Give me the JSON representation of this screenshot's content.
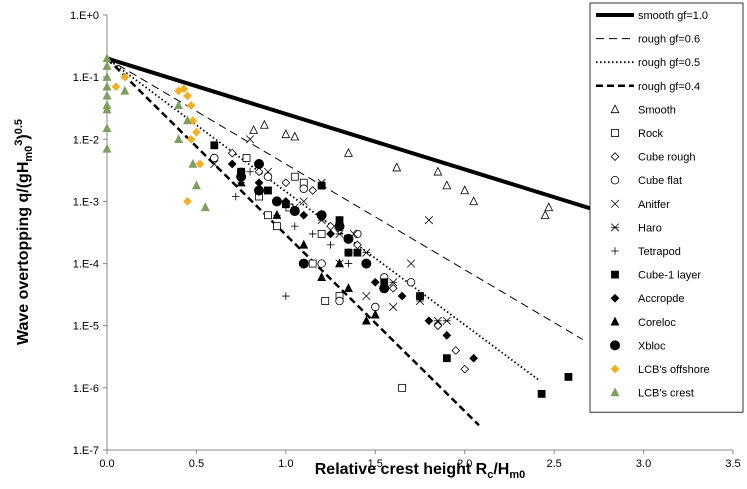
{
  "chart_data": {
    "type": "scatter",
    "yscale": "log",
    "grid": false,
    "legend": "upper right",
    "xlabel": [
      "Relative crest height R",
      "c",
      "/H",
      "m0"
    ],
    "ylabel": [
      "Wave overtopping q/(gH",
      "m0",
      "3",
      ")",
      "0.5"
    ],
    "xlim": [
      0,
      3.5
    ],
    "ylim": [
      1e-07,
      1
    ],
    "xticks": [
      {
        "value": 0,
        "label": "0.0"
      },
      0.5,
      {
        "value": 1,
        "label": "1.0"
      },
      1.5,
      {
        "value": 2,
        "label": "2.0"
      },
      2.5,
      {
        "value": 3,
        "label": "3.0"
      },
      3.5
    ],
    "yticks": [
      {
        "value": 1e-07,
        "label": "1.E-7"
      },
      {
        "value": 1e-06,
        "label": "1.E-6"
      },
      {
        "value": 1e-05,
        "label": "1.E-5"
      },
      {
        "value": 0.0001,
        "label": "1.E-4"
      },
      {
        "value": 0.001,
        "label": "1.E-3"
      },
      {
        "value": 0.01,
        "label": "1.E-2"
      },
      {
        "value": 0.1,
        "label": "1.E-1"
      },
      {
        "value": 1,
        "label": "1.E+0"
      }
    ],
    "lines": [
      {
        "name": "smooth gf=1.0",
        "color": "#000000",
        "dash": "solid",
        "x": [
          0,
          3.5
        ],
        "values": [
          0.2,
          0.00015
        ]
      },
      {
        "name": "rough gf=0.6",
        "color": "#000000",
        "dash": "dashed",
        "x": [
          0,
          2.66
        ],
        "values": [
          0.2,
          6e-06
        ]
      },
      {
        "name": "rough gf=0.5",
        "color": "#000000",
        "dash": "dotted",
        "x": [
          0,
          2.42
        ],
        "values": [
          0.2,
          1.3e-06
        ]
      },
      {
        "name": "rough gf=0.4",
        "color": "#000000",
        "dash": "bold-dashed",
        "x": [
          0,
          2.08
        ],
        "values": [
          0.2,
          2.5e-07
        ]
      }
    ],
    "series": [
      {
        "name": "Smooth",
        "marker": "triangle",
        "filled": false,
        "color": "#000000",
        "x": [
          0.82,
          0.88,
          1.0,
          1.05,
          1.35,
          1.62,
          1.85,
          1.9,
          2.0,
          2.05,
          2.45,
          2.47
        ],
        "values": [
          0.014,
          0.017,
          0.012,
          0.011,
          0.006,
          0.0035,
          0.003,
          0.0018,
          0.0015,
          0.001,
          0.0006,
          0.0008
        ]
      },
      {
        "name": "Rock",
        "marker": "square",
        "filled": false,
        "color": "#000000",
        "x": [
          0.78,
          0.85,
          0.95,
          1.02,
          1.1,
          1.15,
          1.2,
          1.22,
          1.3,
          1.65,
          1.05,
          0.9
        ],
        "values": [
          0.005,
          0.0012,
          0.0004,
          0.0008,
          0.002,
          0.0001,
          0.0003,
          2.5e-05,
          3e-05,
          1e-06,
          0.0025,
          0.0006
        ]
      },
      {
        "name": "Cube rough",
        "marker": "diamond",
        "filled": false,
        "color": "#000000",
        "x": [
          0.7,
          0.85,
          1.0,
          1.15,
          1.25,
          1.4,
          1.6,
          1.75,
          1.85,
          1.95,
          2.0
        ],
        "values": [
          0.006,
          0.003,
          0.002,
          0.0015,
          0.0004,
          0.0002,
          4e-05,
          3e-05,
          1e-05,
          4e-06,
          2e-06
        ]
      },
      {
        "name": "Cube flat",
        "marker": "circle",
        "filled": false,
        "color": "#000000",
        "x": [
          0.6,
          0.75,
          0.9,
          1.1,
          1.2,
          1.4,
          1.55,
          1.7,
          1.5,
          1.3
        ],
        "values": [
          0.005,
          0.003,
          0.0025,
          0.0016,
          0.0001,
          0.0003,
          6e-05,
          5e-05,
          2e-05,
          2.5e-05
        ]
      },
      {
        "name": "Anitfer",
        "marker": "x",
        "filled": false,
        "color": "#000000",
        "x": [
          0.6,
          0.8,
          0.9,
          1.1,
          1.2,
          1.3,
          1.45,
          1.55,
          1.7,
          1.8,
          1.6,
          1.38
        ],
        "values": [
          0.004,
          0.01,
          0.003,
          0.001,
          0.002,
          0.0001,
          3e-05,
          5e-05,
          0.0001,
          0.0005,
          2e-05,
          0.0003
        ]
      },
      {
        "name": "Haro",
        "marker": "star",
        "filled": false,
        "color": "#000000",
        "x": [
          0.75,
          0.9,
          1.05,
          1.2,
          1.3,
          1.45,
          1.6,
          1.75,
          1.85,
          1.9
        ],
        "values": [
          0.002,
          0.0015,
          0.0008,
          0.0005,
          0.0003,
          0.00015,
          5e-05,
          2.5e-05,
          1.2e-05,
          1.2e-05
        ]
      },
      {
        "name": "Tetrapod",
        "marker": "plus",
        "filled": false,
        "color": "#000000",
        "x": [
          0.72,
          0.8,
          0.95,
          1.05,
          1.1,
          1.15,
          1.25,
          1.35,
          1.0,
          0.85
        ],
        "values": [
          0.0012,
          0.003,
          0.0006,
          0.0004,
          0.0001,
          0.0003,
          0.0002,
          0.0001,
          3e-05,
          0.0015
        ]
      },
      {
        "name": "Cube-1 layer",
        "marker": "square",
        "filled": true,
        "color": "#000000",
        "x": [
          0.6,
          0.75,
          0.9,
          1.0,
          1.2,
          1.3,
          1.4,
          1.55,
          1.75,
          1.9,
          2.43,
          2.58,
          1.35
        ],
        "values": [
          0.008,
          0.003,
          0.0015,
          0.0009,
          0.0018,
          0.0005,
          0.00015,
          5e-05,
          3e-05,
          3e-06,
          8e-07,
          1.5e-06,
          0.00015
        ]
      },
      {
        "name": "Accropde",
        "marker": "diamond",
        "filled": true,
        "color": "#000000",
        "x": [
          0.7,
          0.85,
          1.0,
          1.1,
          1.25,
          1.35,
          1.5,
          1.65,
          1.8,
          1.9,
          2.05
        ],
        "values": [
          0.004,
          0.002,
          0.001,
          0.0006,
          0.0003,
          0.00015,
          5e-05,
          3e-05,
          1.2e-05,
          7e-06,
          3e-06
        ]
      },
      {
        "name": "Coreloc",
        "marker": "triangle",
        "filled": true,
        "color": "#000000",
        "x": [
          0.75,
          0.95,
          1.1,
          1.2,
          1.3,
          1.35,
          1.45,
          1.5
        ],
        "values": [
          0.002,
          0.0006,
          0.0002,
          6e-05,
          0.0001,
          4e-05,
          1.2e-05,
          1.5e-05
        ]
      },
      {
        "name": "Xbloc",
        "marker": "circle",
        "filled": true,
        "color": "#000000",
        "x": [
          0.75,
          0.85,
          0.95,
          1.05,
          1.2,
          1.3,
          1.35,
          1.45,
          1.55,
          0.85,
          1.1
        ],
        "values": [
          0.0025,
          0.0015,
          0.001,
          0.0007,
          0.0006,
          0.0004,
          0.00025,
          0.0001,
          4e-05,
          0.004,
          0.0001
        ]
      },
      {
        "name": "LCB's offshore",
        "marker": "diamond",
        "filled": true,
        "color": "#f4b024",
        "x": [
          0.05,
          0.1,
          0.4,
          0.43,
          0.45,
          0.47,
          0.48,
          0.5,
          0.52,
          0.45,
          0.47
        ],
        "values": [
          0.07,
          0.1,
          0.06,
          0.065,
          0.05,
          0.035,
          0.02,
          0.013,
          0.004,
          0.001,
          0.01
        ]
      },
      {
        "name": "LCB's crest",
        "marker": "triangle",
        "filled": true,
        "color": "#7f9f5f",
        "x": [
          0,
          0,
          0,
          0,
          0,
          0,
          0,
          0,
          0,
          0.1,
          0.4,
          0.45,
          0.48,
          0.5,
          0.55,
          0.4
        ],
        "values": [
          0.2,
          0.15,
          0.1,
          0.07,
          0.05,
          0.035,
          0.015,
          0.007,
          0.03,
          0.06,
          0.035,
          0.02,
          0.004,
          0.0018,
          0.0008,
          0.01
        ]
      }
    ]
  }
}
